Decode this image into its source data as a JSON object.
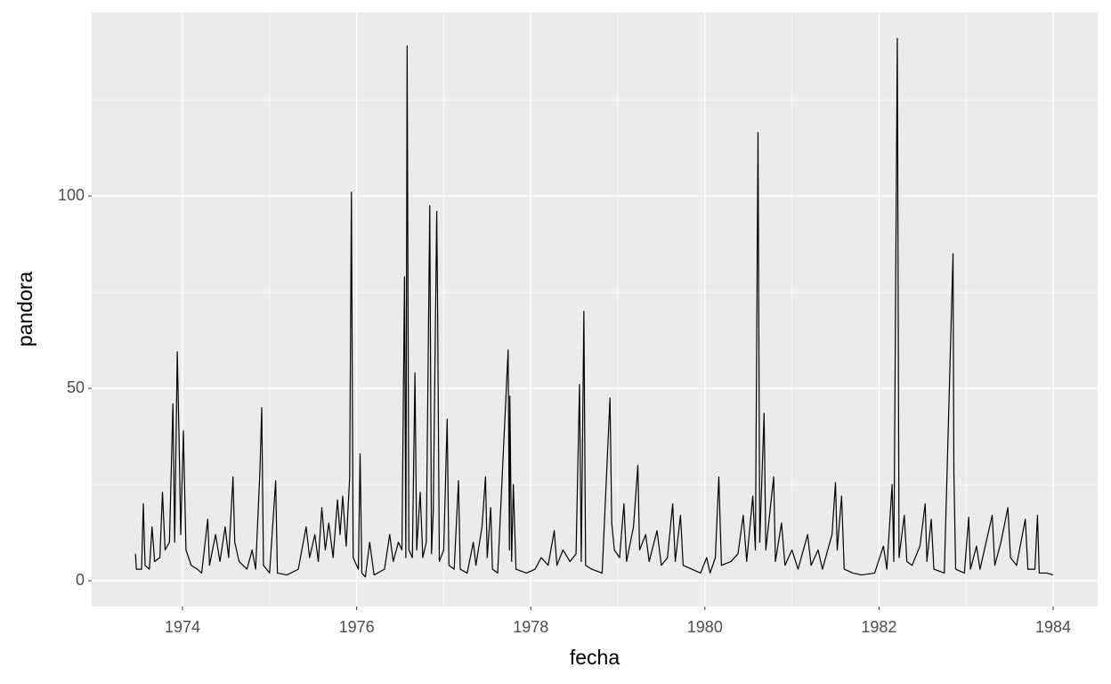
{
  "chart_data": {
    "type": "line",
    "x_label": "fecha",
    "y_label": "pandora",
    "xlim": [
      1972.957,
      1984.511
    ],
    "ylim": [
      -6.7,
      147.7
    ],
    "xticks": [
      1974,
      1976,
      1978,
      1980,
      1982,
      1984
    ],
    "yticks": [
      0,
      50,
      100
    ],
    "grid": true,
    "series": [
      {
        "color": "#000000",
        "x": [
          1973.46,
          1973.47,
          1973.53,
          1973.55,
          1973.57,
          1973.62,
          1973.65,
          1973.68,
          1973.74,
          1973.77,
          1973.8,
          1973.85,
          1973.89,
          1973.91,
          1973.94,
          1973.96,
          1973.98,
          1974.01,
          1974.04,
          1974.1,
          1974.17,
          1974.22,
          1974.29,
          1974.31,
          1974.38,
          1974.43,
          1974.49,
          1974.53,
          1974.58,
          1974.6,
          1974.65,
          1974.74,
          1974.8,
          1974.84,
          1974.89,
          1974.91,
          1974.93,
          1975.0,
          1975.07,
          1975.09,
          1975.2,
          1975.33,
          1975.42,
          1975.46,
          1975.52,
          1975.56,
          1975.6,
          1975.64,
          1975.68,
          1975.73,
          1975.78,
          1975.81,
          1975.84,
          1975.88,
          1975.92,
          1975.94,
          1975.96,
          1976.02,
          1976.04,
          1976.06,
          1976.1,
          1976.15,
          1976.2,
          1976.32,
          1976.38,
          1976.42,
          1976.48,
          1976.52,
          1976.55,
          1976.565,
          1976.58,
          1976.6,
          1976.64,
          1976.67,
          1976.69,
          1976.73,
          1976.76,
          1976.8,
          1976.84,
          1976.86,
          1976.88,
          1976.92,
          1976.93,
          1976.95,
          1977.0,
          1977.04,
          1977.06,
          1977.12,
          1977.17,
          1977.19,
          1977.27,
          1977.34,
          1977.37,
          1977.44,
          1977.48,
          1977.5,
          1977.54,
          1977.56,
          1977.62,
          1977.74,
          1977.755,
          1977.76,
          1977.78,
          1977.8,
          1977.83,
          1977.95,
          1978.05,
          1978.12,
          1978.2,
          1978.27,
          1978.3,
          1978.37,
          1978.45,
          1978.52,
          1978.56,
          1978.58,
          1978.61,
          1978.63,
          1978.7,
          1978.82,
          1978.91,
          1978.93,
          1978.96,
          1979.02,
          1979.07,
          1979.1,
          1979.18,
          1979.23,
          1979.25,
          1979.32,
          1979.36,
          1979.45,
          1979.5,
          1979.57,
          1979.63,
          1979.66,
          1979.72,
          1979.75,
          1979.85,
          1979.95,
          1980.02,
          1980.06,
          1980.12,
          1980.16,
          1980.19,
          1980.3,
          1980.38,
          1980.44,
          1980.48,
          1980.55,
          1980.58,
          1980.61,
          1980.63,
          1980.68,
          1980.7,
          1980.79,
          1980.81,
          1980.88,
          1980.92,
          1981.0,
          1981.07,
          1981.18,
          1981.22,
          1981.3,
          1981.35,
          1981.46,
          1981.5,
          1981.52,
          1981.57,
          1981.6,
          1981.7,
          1981.8,
          1981.95,
          1982.05,
          1982.09,
          1982.15,
          1982.17,
          1982.21,
          1982.23,
          1982.29,
          1982.32,
          1982.38,
          1982.47,
          1982.53,
          1982.55,
          1982.6,
          1982.63,
          1982.75,
          1982.85,
          1982.86,
          1982.88,
          1982.98,
          1983.03,
          1983.05,
          1983.12,
          1983.16,
          1983.25,
          1983.3,
          1983.33,
          1983.4,
          1983.48,
          1983.51,
          1983.58,
          1983.68,
          1983.71,
          1983.79,
          1983.82,
          1983.84,
          1983.93,
          1984.0
        ],
        "values": [
          7,
          3,
          3,
          20,
          4,
          3,
          14,
          5,
          6,
          23,
          8,
          10,
          46,
          10,
          59.5,
          37,
          12,
          39,
          8,
          4,
          3,
          2,
          16,
          4,
          12,
          5,
          14,
          6,
          27,
          10,
          5,
          3,
          8,
          3,
          29,
          45,
          4,
          2,
          26,
          2,
          1.5,
          3,
          14,
          6,
          12,
          5,
          19,
          8,
          15,
          6,
          21,
          12,
          22,
          9,
          27,
          101,
          6,
          3,
          33,
          2,
          1,
          10,
          1.5,
          3,
          12,
          5,
          10,
          8,
          79,
          6,
          139,
          8,
          6,
          54,
          8,
          23,
          6,
          10,
          97.5,
          7,
          18,
          96,
          71,
          5,
          8,
          42,
          4,
          3,
          26,
          3,
          2,
          10,
          4,
          14,
          27,
          6,
          19,
          3,
          2,
          60,
          8,
          48,
          5,
          25,
          3,
          2,
          3,
          6,
          4,
          13,
          4,
          8,
          5,
          7,
          51,
          5,
          70,
          4,
          3,
          2,
          47.5,
          15,
          8,
          6,
          20,
          5,
          14,
          30,
          8,
          12,
          5,
          13,
          4,
          6,
          20,
          5,
          17,
          4,
          3,
          2,
          6,
          2,
          6,
          27,
          4,
          5,
          7,
          17,
          5,
          22,
          8,
          116.5,
          10,
          43.5,
          8,
          27,
          5,
          15,
          4,
          8,
          3,
          12,
          4,
          8,
          3,
          12,
          25.5,
          8,
          22,
          3,
          2,
          1.5,
          2,
          9,
          3,
          25,
          5,
          141,
          6,
          17,
          5,
          4,
          9,
          20,
          5,
          16,
          3,
          2,
          85,
          28,
          3,
          2,
          16.5,
          3,
          9,
          3,
          12,
          17,
          4,
          10,
          19,
          6,
          4,
          16,
          3,
          3,
          17,
          2,
          2,
          1.5
        ]
      }
    ]
  }
}
